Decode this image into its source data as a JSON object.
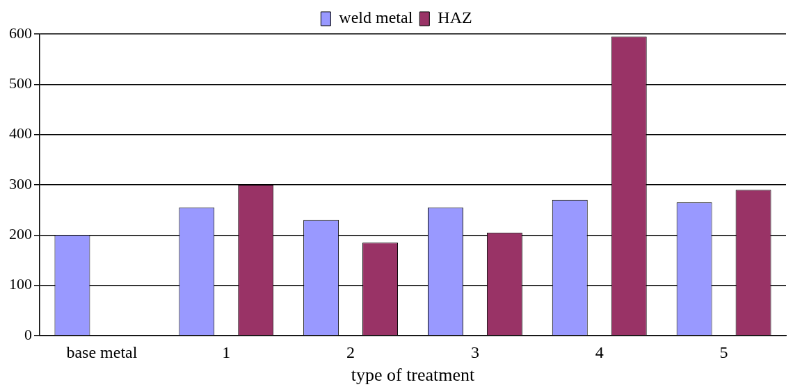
{
  "chart_data": {
    "type": "bar",
    "xlabel": "type of treatment",
    "categories": [
      "base metal",
      "1",
      "2",
      "3",
      "4",
      "5"
    ],
    "series": [
      {
        "name": "weld metal",
        "color": "#9999ff",
        "values": [
          200,
          255,
          230,
          255,
          270,
          265
        ]
      },
      {
        "name": "HAZ",
        "color": "#993366",
        "values": [
          null,
          300,
          185,
          205,
          595,
          290
        ]
      }
    ],
    "ylim": [
      0,
      600
    ],
    "yticks": [
      0,
      100,
      200,
      300,
      400,
      500,
      600
    ],
    "grid": "y",
    "legend": "top"
  }
}
